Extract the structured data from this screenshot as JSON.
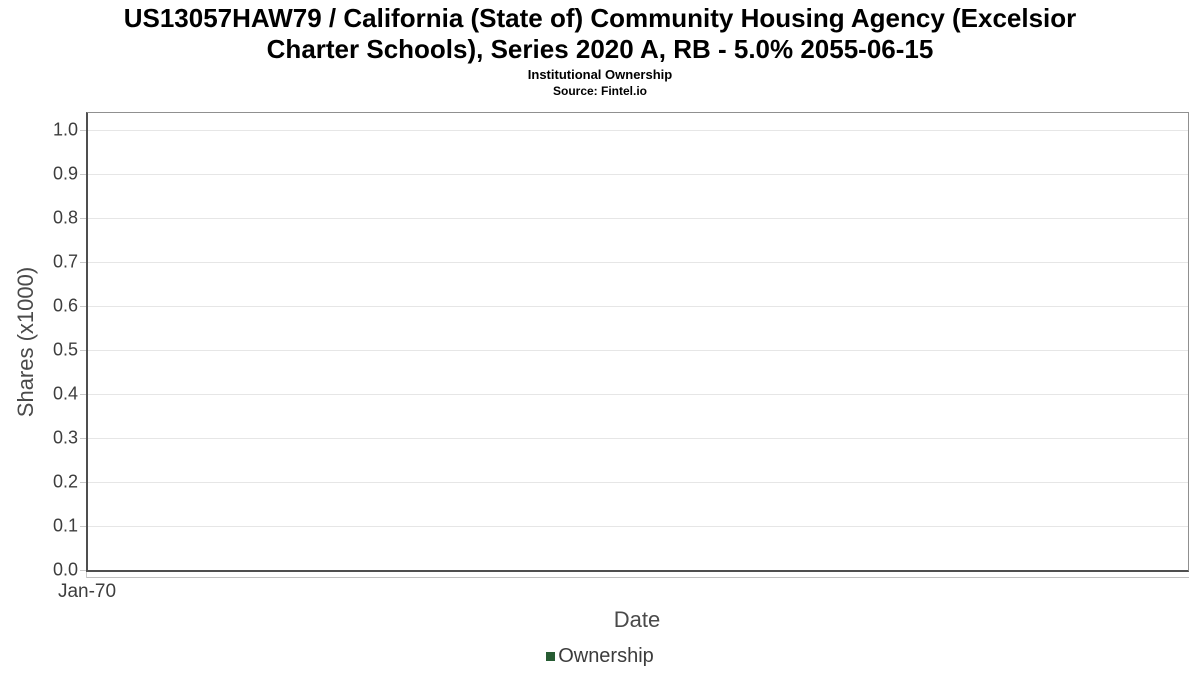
{
  "title_lines": {
    "line1": "US13057HAW79 / California (State of) Community Housing Agency (Excelsior",
    "line2": "Charter Schools), Series 2020 A, RB - 5.0% 2055-06-15"
  },
  "colors": {
    "legend_marker_green": "#275c33",
    "axis_line_dark": "#4f4f4f",
    "plot_border_light": "#909090",
    "gridline": "#e6e6e6",
    "tick_mark": "#c9c9c9",
    "tick_text": "#3d3d3d",
    "axis_title_text": "#4a4a4a",
    "title_text": "#000000",
    "background": "#ffffff"
  },
  "chart_data": {
    "type": "line",
    "title": "US13057HAW79 / California (State of) Community Housing Agency (Excelsior Charter Schools), Series 2020 A, RB - 5.0% 2055-06-15",
    "subtitle": "Institutional Ownership",
    "source": "Source: Fintel.io",
    "xlabel": "Date",
    "ylabel": "Shares (x1000)",
    "x_tick_labels": [
      "Jan-70"
    ],
    "y_tick_labels": [
      "0.0",
      "0.1",
      "0.2",
      "0.3",
      "0.4",
      "0.5",
      "0.6",
      "0.7",
      "0.8",
      "0.9",
      "1.0"
    ],
    "ylim": [
      0.0,
      1.045
    ],
    "grid": true,
    "legend_position": "bottom",
    "series": [
      {
        "name": "Ownership",
        "color": "#275c33",
        "x": [],
        "values": []
      }
    ]
  }
}
